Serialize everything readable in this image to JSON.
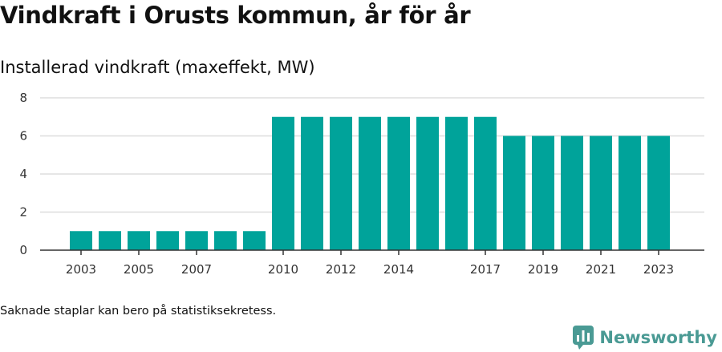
{
  "chart_title": "Vindkraft i Orusts kommun, år för år",
  "footnote": "Saknade staplar kan bero på statistiksekretess.",
  "brand": {
    "name": "Newsworthy",
    "logo_icon": "chart-bubble-icon",
    "color": "#4a9a94"
  },
  "colors": {
    "bar": "#00a39a",
    "grid": "#dddddd",
    "axis": "#333333"
  },
  "chart_data": {
    "type": "bar",
    "title": "Installerad vindkraft (maxeffekt, MW)",
    "categories": [
      "2003",
      "2004",
      "2005",
      "2006",
      "2007",
      "2008",
      "2009",
      "2010",
      "2011",
      "2012",
      "2013",
      "2014",
      "2015",
      "2016",
      "2017",
      "2018",
      "2019",
      "2020",
      "2021",
      "2022",
      "2023"
    ],
    "values": [
      1,
      1,
      1,
      1,
      1,
      1,
      1,
      7,
      7,
      7,
      7,
      7,
      7,
      7,
      7,
      6,
      6,
      6,
      6,
      6,
      6
    ],
    "x_tick_labels": [
      "2003",
      "2005",
      "2007",
      "2010",
      "2012",
      "2014",
      "2017",
      "2019",
      "2021",
      "2023"
    ],
    "ylim": [
      0,
      8
    ],
    "y_ticks": [
      0,
      2,
      4,
      6,
      8
    ],
    "grid": true,
    "legend": "none",
    "xlabel": "",
    "ylabel": ""
  }
}
